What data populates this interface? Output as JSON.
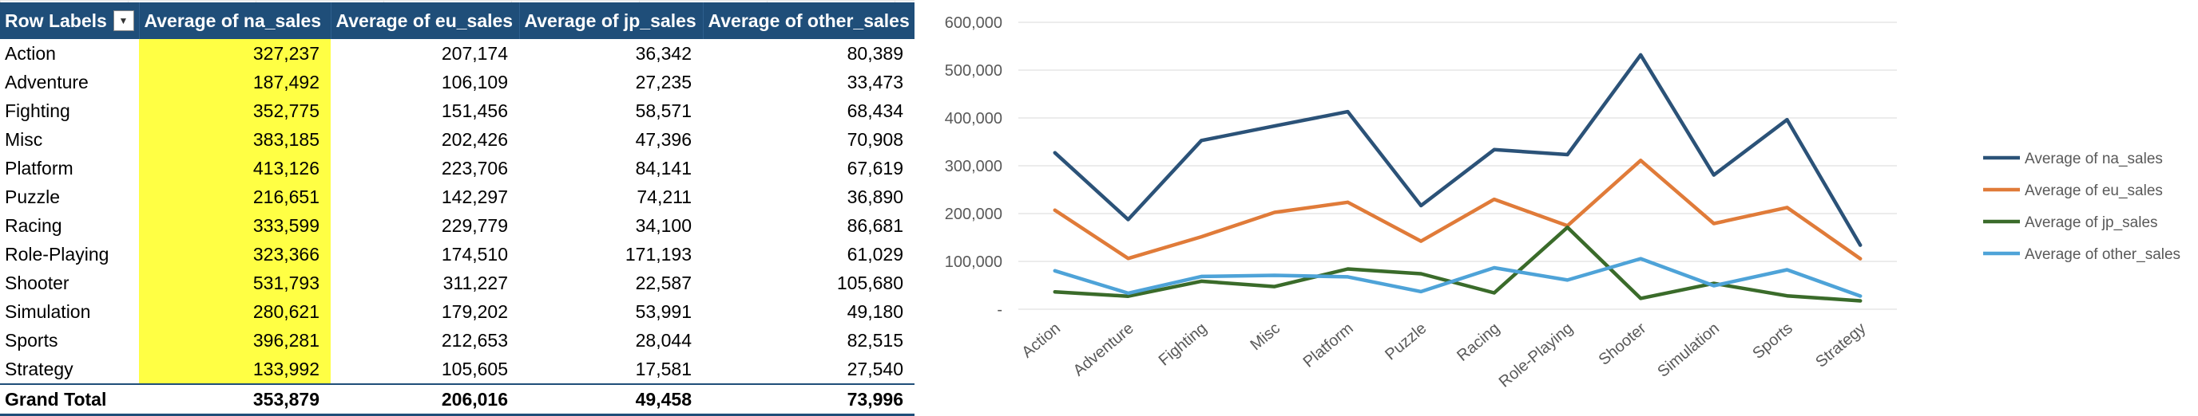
{
  "pivot": {
    "headers": [
      "Row Labels",
      "Average of na_sales",
      "Average of eu_sales",
      "Average of jp_sales",
      "Average of other_sales"
    ],
    "rows": [
      {
        "label": "Action",
        "na": "327,237",
        "eu": "207,174",
        "jp": "36,342",
        "other": "80,389"
      },
      {
        "label": "Adventure",
        "na": "187,492",
        "eu": "106,109",
        "jp": "27,235",
        "other": "33,473"
      },
      {
        "label": "Fighting",
        "na": "352,775",
        "eu": "151,456",
        "jp": "58,571",
        "other": "68,434"
      },
      {
        "label": "Misc",
        "na": "383,185",
        "eu": "202,426",
        "jp": "47,396",
        "other": "70,908"
      },
      {
        "label": "Platform",
        "na": "413,126",
        "eu": "223,706",
        "jp": "84,141",
        "other": "67,619"
      },
      {
        "label": "Puzzle",
        "na": "216,651",
        "eu": "142,297",
        "jp": "74,211",
        "other": "36,890"
      },
      {
        "label": "Racing",
        "na": "333,599",
        "eu": "229,779",
        "jp": "34,100",
        "other": "86,681"
      },
      {
        "label": "Role-Playing",
        "na": "323,366",
        "eu": "174,510",
        "jp": "171,193",
        "other": "61,029"
      },
      {
        "label": "Shooter",
        "na": "531,793",
        "eu": "311,227",
        "jp": "22,587",
        "other": "105,680"
      },
      {
        "label": "Simulation",
        "na": "280,621",
        "eu": "179,202",
        "jp": "53,991",
        "other": "49,180"
      },
      {
        "label": "Sports",
        "na": "396,281",
        "eu": "212,653",
        "jp": "28,044",
        "other": "82,515"
      },
      {
        "label": "Strategy",
        "na": "133,992",
        "eu": "105,605",
        "jp": "17,581",
        "other": "27,540"
      }
    ],
    "total": {
      "label": "Grand Total",
      "na": "353,879",
      "eu": "206,016",
      "jp": "49,458",
      "other": "73,996"
    },
    "highlight_color": "#ffff44",
    "header_color": "#1f4e79"
  },
  "chart_data": {
    "type": "line",
    "categories": [
      "Action",
      "Adventure",
      "Fighting",
      "Misc",
      "Platform",
      "Puzzle",
      "Racing",
      "Role-Playing",
      "Shooter",
      "Simulation",
      "Sports",
      "Strategy"
    ],
    "series": [
      {
        "name": "Average of na_sales",
        "color": "#2b5278",
        "values": [
          327237,
          187492,
          352775,
          383185,
          413126,
          216651,
          333599,
          323366,
          531793,
          280621,
          396281,
          133992
        ]
      },
      {
        "name": "Average of eu_sales",
        "color": "#e07b39",
        "values": [
          207174,
          106109,
          151456,
          202426,
          223706,
          142297,
          229779,
          174510,
          311227,
          179202,
          212653,
          105605
        ]
      },
      {
        "name": "Average of jp_sales",
        "color": "#3a6b2a",
        "values": [
          36342,
          27235,
          58571,
          47396,
          84141,
          74211,
          34100,
          171193,
          22587,
          53991,
          28044,
          17581
        ]
      },
      {
        "name": "Average of other_sales",
        "color": "#4ea3d8",
        "values": [
          80389,
          33473,
          68434,
          70908,
          67619,
          36890,
          86681,
          61029,
          105680,
          49180,
          82515,
          27540
        ]
      }
    ],
    "yticks": [
      "-",
      "100,000",
      "200,000",
      "300,000",
      "400,000",
      "500,000",
      "600,000"
    ],
    "ylim": [
      0,
      600000
    ],
    "grid": true,
    "legend": "right"
  }
}
